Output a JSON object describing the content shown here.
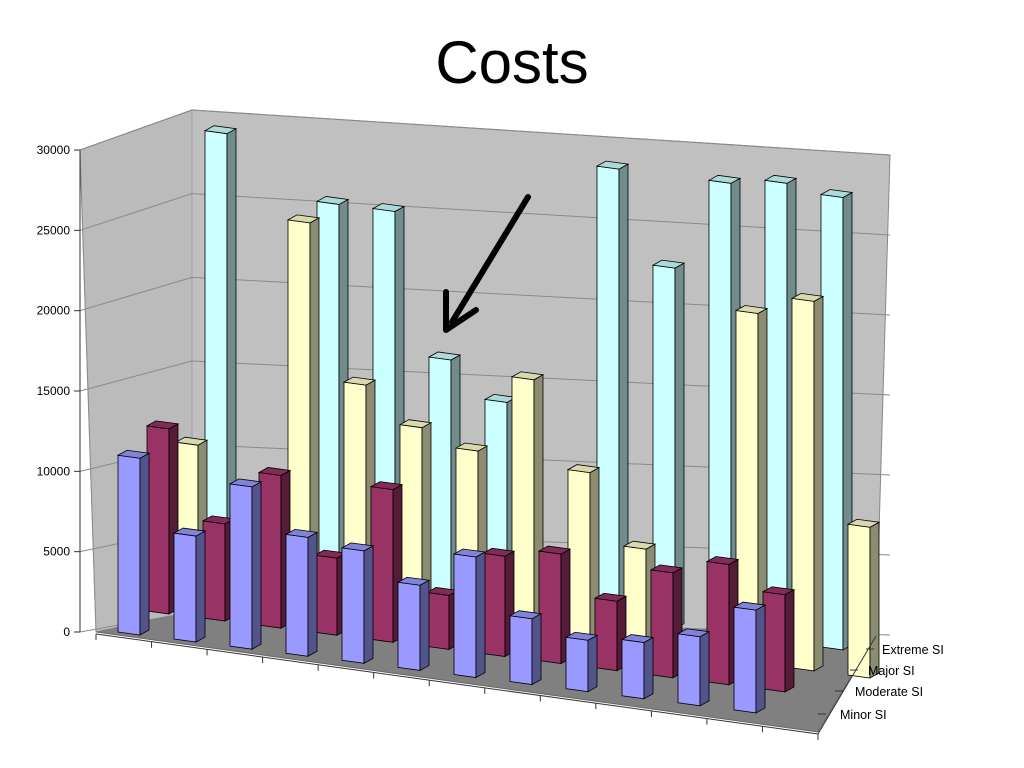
{
  "chart_data": {
    "type": "bar",
    "title": "Costs",
    "xlabel": "",
    "ylabel": "",
    "ylim": [
      0,
      30000
    ],
    "yticks": [
      0,
      5000,
      10000,
      15000,
      20000,
      25000,
      30000
    ],
    "grid": true,
    "categories": [
      "",
      "",
      "",
      "",
      "",
      "",
      "",
      "",
      "",
      "",
      "",
      "",
      ""
    ],
    "series": [
      {
        "name": "Minor SI",
        "color": "#9999ff",
        "values": [
          11000,
          6600,
          10100,
          7400,
          7000,
          5300,
          7500,
          4100,
          3200,
          3500,
          4300,
          6400,
          0
        ]
      },
      {
        "name": "Moderate SI",
        "color": "#993366",
        "values": [
          12000,
          6300,
          9900,
          5000,
          9900,
          3500,
          6500,
          7100,
          4500,
          6800,
          7800,
          6300,
          0
        ]
      },
      {
        "name": "Major SI",
        "color": "#ffffcc",
        "values": [
          10000,
          0,
          26000,
          15500,
          13100,
          12000,
          17300,
          11500,
          6800,
          0,
          23700,
          25000,
          10200
        ]
      },
      {
        "name": "Extreme SI",
        "color": "#ccffff",
        "values": [
          31000,
          0,
          27000,
          27000,
          17000,
          14500,
          0,
          32000,
          25500,
          32000,
          32500,
          32000,
          0
        ]
      }
    ],
    "annotation": "arrow",
    "legend_position": "right-depth"
  }
}
